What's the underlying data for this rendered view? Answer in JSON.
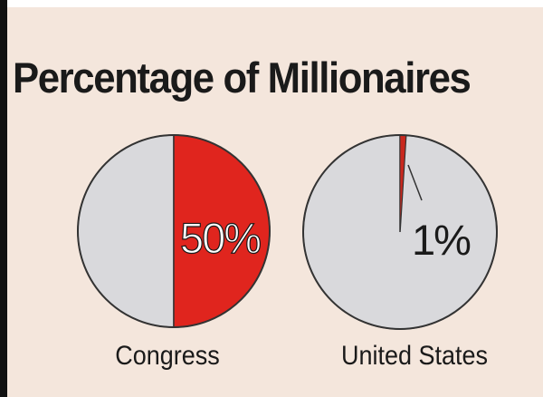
{
  "title": "Percentage of Millionaires",
  "chart_data": [
    {
      "type": "pie",
      "category": "Congress",
      "slices": [
        {
          "label": "50%",
          "value": 50,
          "color": "#e0251e"
        },
        {
          "label": "",
          "value": 50,
          "color": "#d9d9dc"
        }
      ]
    },
    {
      "type": "pie",
      "category": "United States",
      "slices": [
        {
          "label": "1%",
          "value": 1,
          "color": "#c9281e"
        },
        {
          "label": "",
          "value": 99,
          "color": "#d9d9dc"
        }
      ]
    }
  ]
}
